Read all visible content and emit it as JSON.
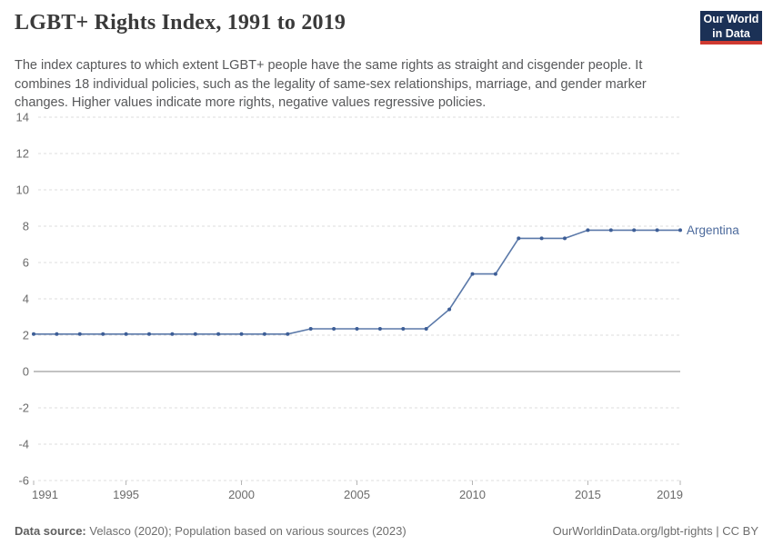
{
  "header": {
    "title": "LGBT+ Rights Index, 1991 to 2019",
    "subtitle": "The index captures to which extent LGBT+ people have the same rights as straight and cisgender people. It combines 18 individual policies, such as the legality of same-sex relationships, marriage, and gender marker changes. Higher values indicate more rights, negative values regressive policies.",
    "logo": {
      "line1": "Our World",
      "line2": "in Data",
      "bg_color": "#1b3156",
      "accent_color": "#cf3a31"
    }
  },
  "chart_data": {
    "type": "line",
    "title": "LGBT+ Rights Index, 1991 to 2019",
    "xlabel": "",
    "ylabel": "",
    "ylim": [
      -6,
      14
    ],
    "yticks": [
      -6,
      -4,
      -2,
      0,
      2,
      4,
      6,
      8,
      10,
      12,
      14
    ],
    "xticks": [
      1991,
      1995,
      2000,
      2005,
      2010,
      2015,
      2019
    ],
    "grid": "dashed-horizontal",
    "zero_line": true,
    "legend_position": "end-of-line-label",
    "x": [
      1991,
      1992,
      1993,
      1994,
      1995,
      1996,
      1997,
      1998,
      1999,
      2000,
      2001,
      2002,
      2003,
      2004,
      2005,
      2006,
      2007,
      2008,
      2009,
      2010,
      2011,
      2012,
      2013,
      2014,
      2015,
      2016,
      2017,
      2018,
      2019
    ],
    "series": [
      {
        "name": "Argentina",
        "color": "#4c6a9c",
        "values": [
          2.06,
          2.06,
          2.06,
          2.06,
          2.06,
          2.06,
          2.06,
          2.06,
          2.06,
          2.06,
          2.06,
          2.06,
          2.35,
          2.35,
          2.35,
          2.35,
          2.35,
          2.35,
          3.42,
          5.37,
          5.37,
          7.33,
          7.33,
          7.33,
          7.78,
          7.78,
          7.78,
          7.78,
          7.78
        ]
      }
    ]
  },
  "colors": {
    "line": "#5b79a9",
    "marker": "#3d5e97",
    "end_label": "#4c6a9c",
    "grid": "#dcdcdc",
    "zero_line": "#9e9e9e",
    "axis_text": "#6b6b6b",
    "tick_mark": "#b3b3b3"
  },
  "footer": {
    "source_label": "Data source:",
    "source_text": " Velasco (2020); Population based on various sources (2023)",
    "link_text": "OurWorldinData.org/lgbt-rights | CC BY"
  }
}
